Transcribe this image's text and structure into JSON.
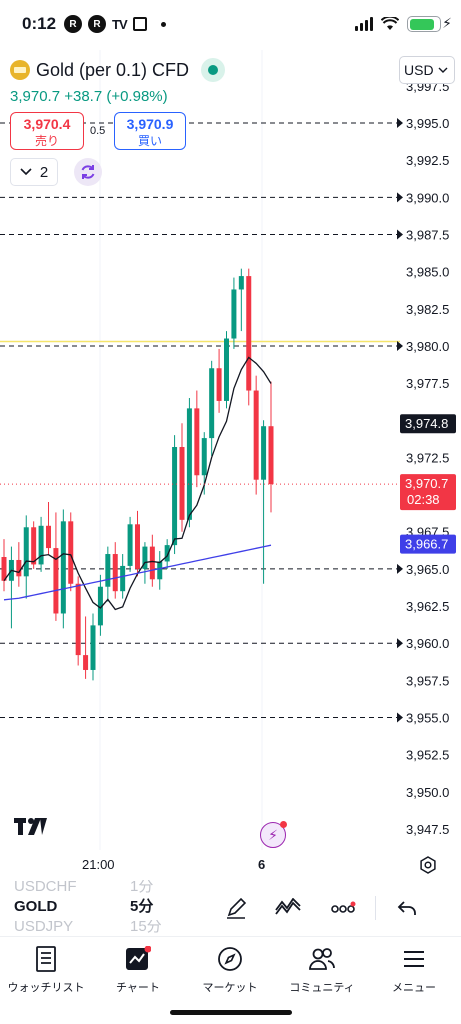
{
  "status_bar": {
    "time": "0:12",
    "badge_1": "R",
    "badge_2": "R",
    "battery_level": 0.85
  },
  "header": {
    "symbol": "Gold (per 0.1) CFD",
    "currency": "USD",
    "last": "3,970.7",
    "change": "+38.7 (+0.98%)",
    "price_summary": "3,970.7  +38.7 (+0.98%)",
    "sell_price": "3,970.4",
    "sell_label": "売り",
    "spread": "0.5",
    "buy_price": "3,970.9",
    "buy_label": "買い",
    "indicator_count": "2"
  },
  "chart_data": {
    "type": "candlestick",
    "y_ticks": [
      3997.5,
      3995.0,
      3992.5,
      3990.0,
      3987.5,
      3985.0,
      3982.5,
      3980.0,
      3977.5,
      3975.0,
      3972.5,
      3970.0,
      3967.5,
      3965.0,
      3962.5,
      3960.0,
      3957.5,
      3955.0,
      3952.5,
      3950.0,
      3947.5
    ],
    "y_tick_labels": [
      "3,997.5",
      "3,995.0",
      "3,992.5",
      "3,990.0",
      "3,987.5",
      "3,985.0",
      "3,982.5",
      "3,980.0",
      "3,977.5",
      "3,975.0",
      "3,972.5",
      "3,970.0",
      "3,967.5",
      "3,965.0",
      "3,962.5",
      "3,960.0",
      "3,957.5",
      "3,955.0",
      "3,952.5",
      "3,950.0",
      "3,947.5"
    ],
    "ylim": [
      3946,
      3998
    ],
    "x_labels": [
      "21:00",
      "6"
    ],
    "alert_lines": [
      3995.0,
      3990.0,
      3987.5,
      3980.0,
      3965.0,
      3960.0,
      3955.0
    ],
    "horizontal_line": 3980.3,
    "current_price": 3970.7,
    "current_price_label": "3,970.7",
    "countdown": "02:38",
    "crosshair_price": 3974.8,
    "crosshair_price_label": "3,974.8",
    "ma_last": 3966.7,
    "ma_last_label": "3,966.7",
    "candles": [
      [
        3965.8,
        3967.0,
        3963.5,
        3964.2
      ],
      [
        3964.2,
        3966.5,
        3961.0,
        3965.6
      ],
      [
        3965.6,
        3966.8,
        3963.8,
        3964.5
      ],
      [
        3964.5,
        3968.6,
        3963.0,
        3967.8
      ],
      [
        3967.8,
        3968.2,
        3965.0,
        3965.3
      ],
      [
        3965.3,
        3968.5,
        3964.8,
        3967.9
      ],
      [
        3967.9,
        3969.5,
        3966.0,
        3966.4
      ],
      [
        3966.4,
        3968.8,
        3961.5,
        3962.0
      ],
      [
        3962.0,
        3969.0,
        3961.0,
        3968.2
      ],
      [
        3968.2,
        3968.8,
        3963.5,
        3964.0
      ],
      [
        3964.0,
        3964.5,
        3958.5,
        3959.2
      ],
      [
        3959.2,
        3961.8,
        3957.6,
        3958.2
      ],
      [
        3958.2,
        3962.0,
        3957.5,
        3961.2
      ],
      [
        3961.2,
        3964.6,
        3960.5,
        3963.8
      ],
      [
        3963.8,
        3966.5,
        3962.8,
        3966.0
      ],
      [
        3966.0,
        3966.8,
        3963.0,
        3963.5
      ],
      [
        3963.5,
        3966.0,
        3963.0,
        3965.2
      ],
      [
        3965.2,
        3968.5,
        3964.8,
        3968.0
      ],
      [
        3968.0,
        3968.9,
        3964.5,
        3965.0
      ],
      [
        3965.0,
        3966.8,
        3964.0,
        3966.5
      ],
      [
        3966.5,
        3967.3,
        3963.8,
        3964.3
      ],
      [
        3964.3,
        3966.2,
        3963.6,
        3965.5
      ],
      [
        3965.5,
        3967.0,
        3965.0,
        3966.6
      ],
      [
        3966.6,
        3974.0,
        3966.0,
        3973.2
      ],
      [
        3973.2,
        3974.8,
        3967.5,
        3968.3
      ],
      [
        3968.3,
        3976.5,
        3967.8,
        3975.8
      ],
      [
        3975.8,
        3977.0,
        3970.5,
        3971.3
      ],
      [
        3971.3,
        3974.2,
        3970.0,
        3973.8
      ],
      [
        3973.8,
        3979.0,
        3972.6,
        3978.5
      ],
      [
        3978.5,
        3979.8,
        3975.5,
        3976.3
      ],
      [
        3976.3,
        3981.0,
        3975.8,
        3980.5
      ],
      [
        3980.5,
        3984.6,
        3979.8,
        3983.8
      ],
      [
        3983.8,
        3985.2,
        3981.0,
        3984.7
      ],
      [
        3984.7,
        3985.2,
        3976.0,
        3977.0
      ],
      [
        3977.0,
        3978.0,
        3970.0,
        3971.0
      ],
      [
        3971.0,
        3975.0,
        3964.0,
        3974.6
      ],
      [
        3974.6,
        3977.6,
        3968.8,
        3970.7
      ]
    ]
  },
  "toolbar": {
    "symbols": [
      {
        "name": "USDCHF",
        "interval": "1分"
      },
      {
        "name": "GOLD",
        "interval": "5分"
      },
      {
        "name": "USDJPY",
        "interval": "15分"
      }
    ]
  },
  "bottom_nav": [
    {
      "label": "ウォッチリスト",
      "icon": "watchlist-icon"
    },
    {
      "label": "チャート",
      "icon": "chart-icon"
    },
    {
      "label": "マーケット",
      "icon": "compass-icon"
    },
    {
      "label": "コミュニティ",
      "icon": "community-icon"
    },
    {
      "label": "メニュー",
      "icon": "menu-icon"
    }
  ],
  "colors": {
    "up": "#089981",
    "down": "#f23645",
    "ma_black": "#131722",
    "ma_blue": "#3f3fe8",
    "highlight": "#f5e56b",
    "accent": "#2962ff"
  }
}
